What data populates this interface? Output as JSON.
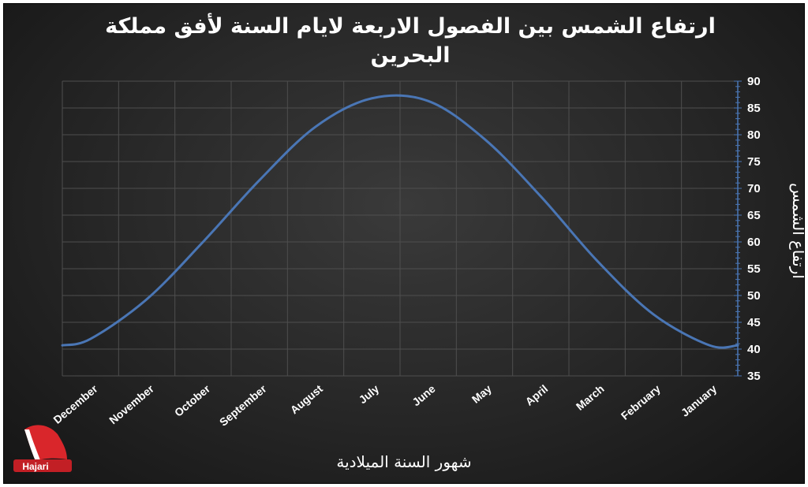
{
  "chart_data": {
    "type": "line",
    "title": "ارتفاع الشمس بين الفصول الاربعة لايام السنة لأفق مملكة البحرين",
    "xlabel": "شهور السنة الميلادية",
    "ylabel": "ارتفاع الشمس",
    "x_reversed": true,
    "categories": [
      "January",
      "February",
      "March",
      "April",
      "May",
      "June",
      "July",
      "August",
      "September",
      "October",
      "November",
      "December"
    ],
    "ylim": [
      35,
      90
    ],
    "yticks": [
      35,
      40,
      45,
      50,
      55,
      60,
      65,
      70,
      75,
      80,
      85,
      90
    ],
    "grid": true,
    "series": [
      {
        "values": [
          40.7,
          46.5,
          56.5,
          68.5,
          79.2,
          86.3,
          86.8,
          81.5,
          71.5,
          60.0,
          49.3,
          41.9
        ],
        "start_value": 40.7,
        "peak_value": 87.1,
        "min_value": 40.4,
        "end_value": 40.7
      }
    ]
  },
  "logo": {
    "text": "Hajari"
  },
  "colors": {
    "line": "#4a76b5",
    "background": "#2b2b2b",
    "grid": "#4e4e4e",
    "text": "#ffffff"
  }
}
